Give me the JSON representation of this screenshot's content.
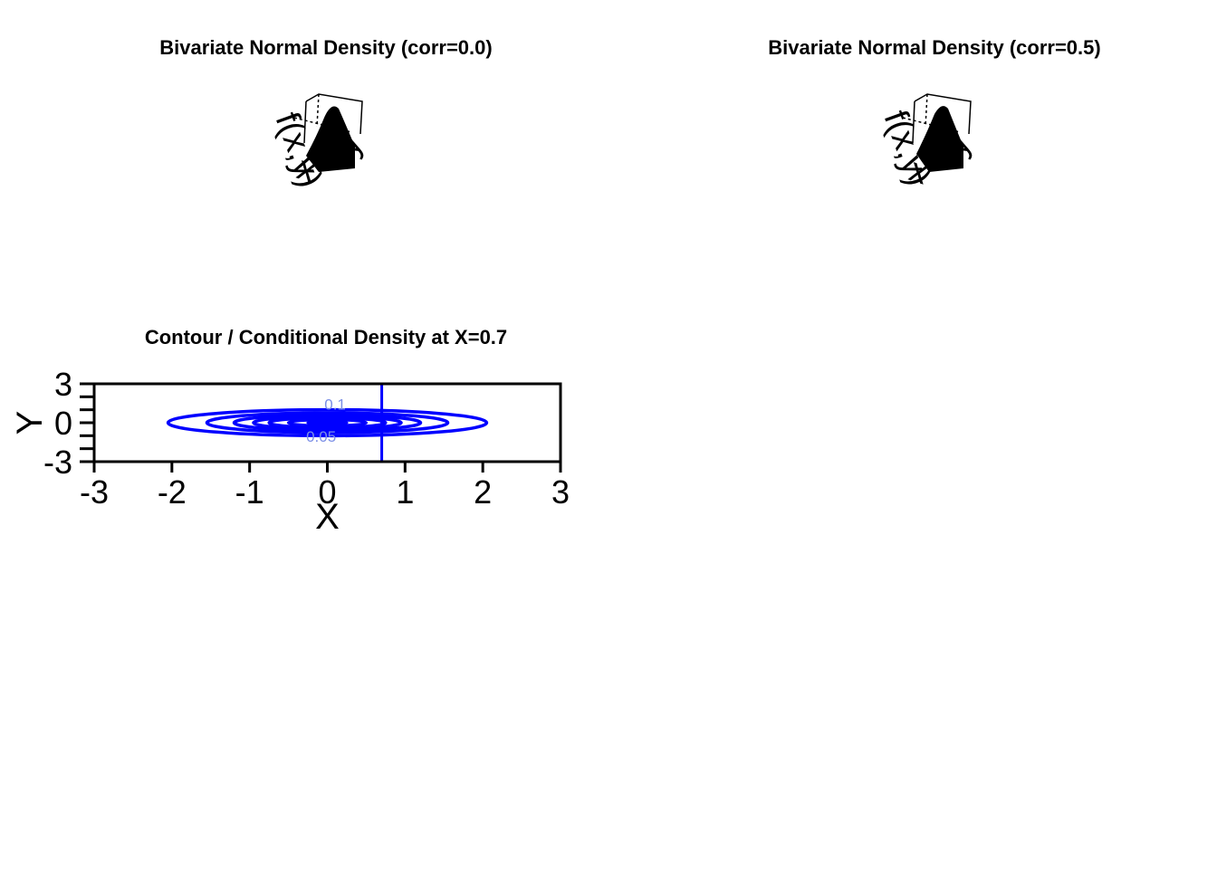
{
  "panels": {
    "p1": {
      "title": "Bivariate Normal Density (corr=0.0)",
      "corr": 0.0,
      "axis_labels": {
        "x": "x",
        "y": "y",
        "z": "f(x,y)"
      }
    },
    "p2": {
      "title": "Bivariate Normal Density (corr=0.5)",
      "corr": 0.5,
      "axis_labels": {
        "x": "x",
        "y": "y",
        "z": "f(x,y)"
      }
    },
    "p3": {
      "title": "Contour / Conditional Density at X=0.7"
    }
  },
  "chart_data": [
    {
      "type": "surface",
      "title": "Bivariate Normal Density (corr=0.0)",
      "corr": 0.0
    },
    {
      "type": "surface",
      "title": "Bivariate Normal Density (corr=0.5)",
      "corr": 0.5
    },
    {
      "type": "contour",
      "title": "Contour / Conditional Density at X=0.7",
      "xlabel": "X",
      "ylabel": "Y",
      "xlim": [
        -3,
        3
      ],
      "ylim": [
        -3,
        3
      ],
      "xticks": [
        "-3",
        "-2",
        "-1",
        "0",
        "1",
        "2",
        "3"
      ],
      "yticks": [
        "-3",
        "0",
        "3"
      ],
      "contour_levels": [
        0.02,
        0.04,
        0.06,
        0.08,
        0.1,
        0.12,
        0.14
      ],
      "contour_semi_x": [
        2.05,
        1.55,
        1.2,
        0.95,
        0.75,
        0.5,
        0.25
      ],
      "visible_level_labels": [
        "0.05",
        "0.1"
      ],
      "vline_x": 0.7,
      "line_color": "#0000ff"
    }
  ]
}
